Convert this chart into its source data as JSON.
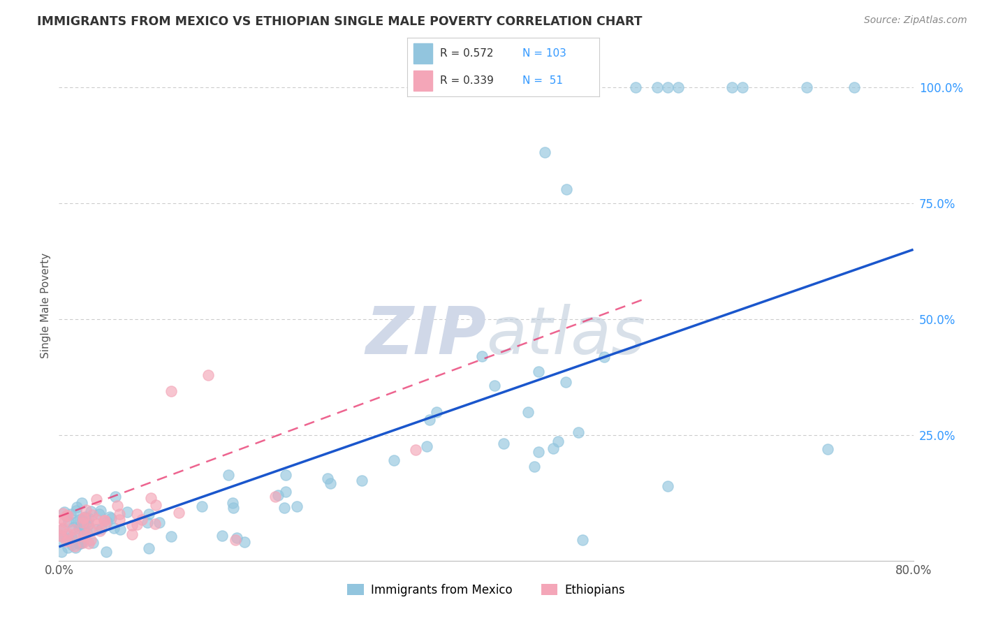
{
  "title": "IMMIGRANTS FROM MEXICO VS ETHIOPIAN SINGLE MALE POVERTY CORRELATION CHART",
  "source": "Source: ZipAtlas.com",
  "ylabel": "Single Male Poverty",
  "xlim": [
    0.0,
    0.8
  ],
  "ylim": [
    0.0,
    1.05
  ],
  "legend_label1": "Immigrants from Mexico",
  "legend_label2": "Ethiopians",
  "color_blue": "#92c5de",
  "color_pink": "#f4a6b8",
  "color_blue_text": "#3399ff",
  "trendline_blue": "#1a56cc",
  "trendline_pink": "#e8306a",
  "background": "#ffffff",
  "grid_color": "#cccccc",
  "watermark_color": "#d0d8e8",
  "blue_trend_x0": 0.0,
  "blue_trend_y0": 0.01,
  "blue_trend_x1": 0.8,
  "blue_trend_y1": 0.65,
  "pink_trend_x0": 0.0,
  "pink_trend_y0": 0.075,
  "pink_trend_x1": 0.55,
  "pink_trend_y1": 0.545
}
